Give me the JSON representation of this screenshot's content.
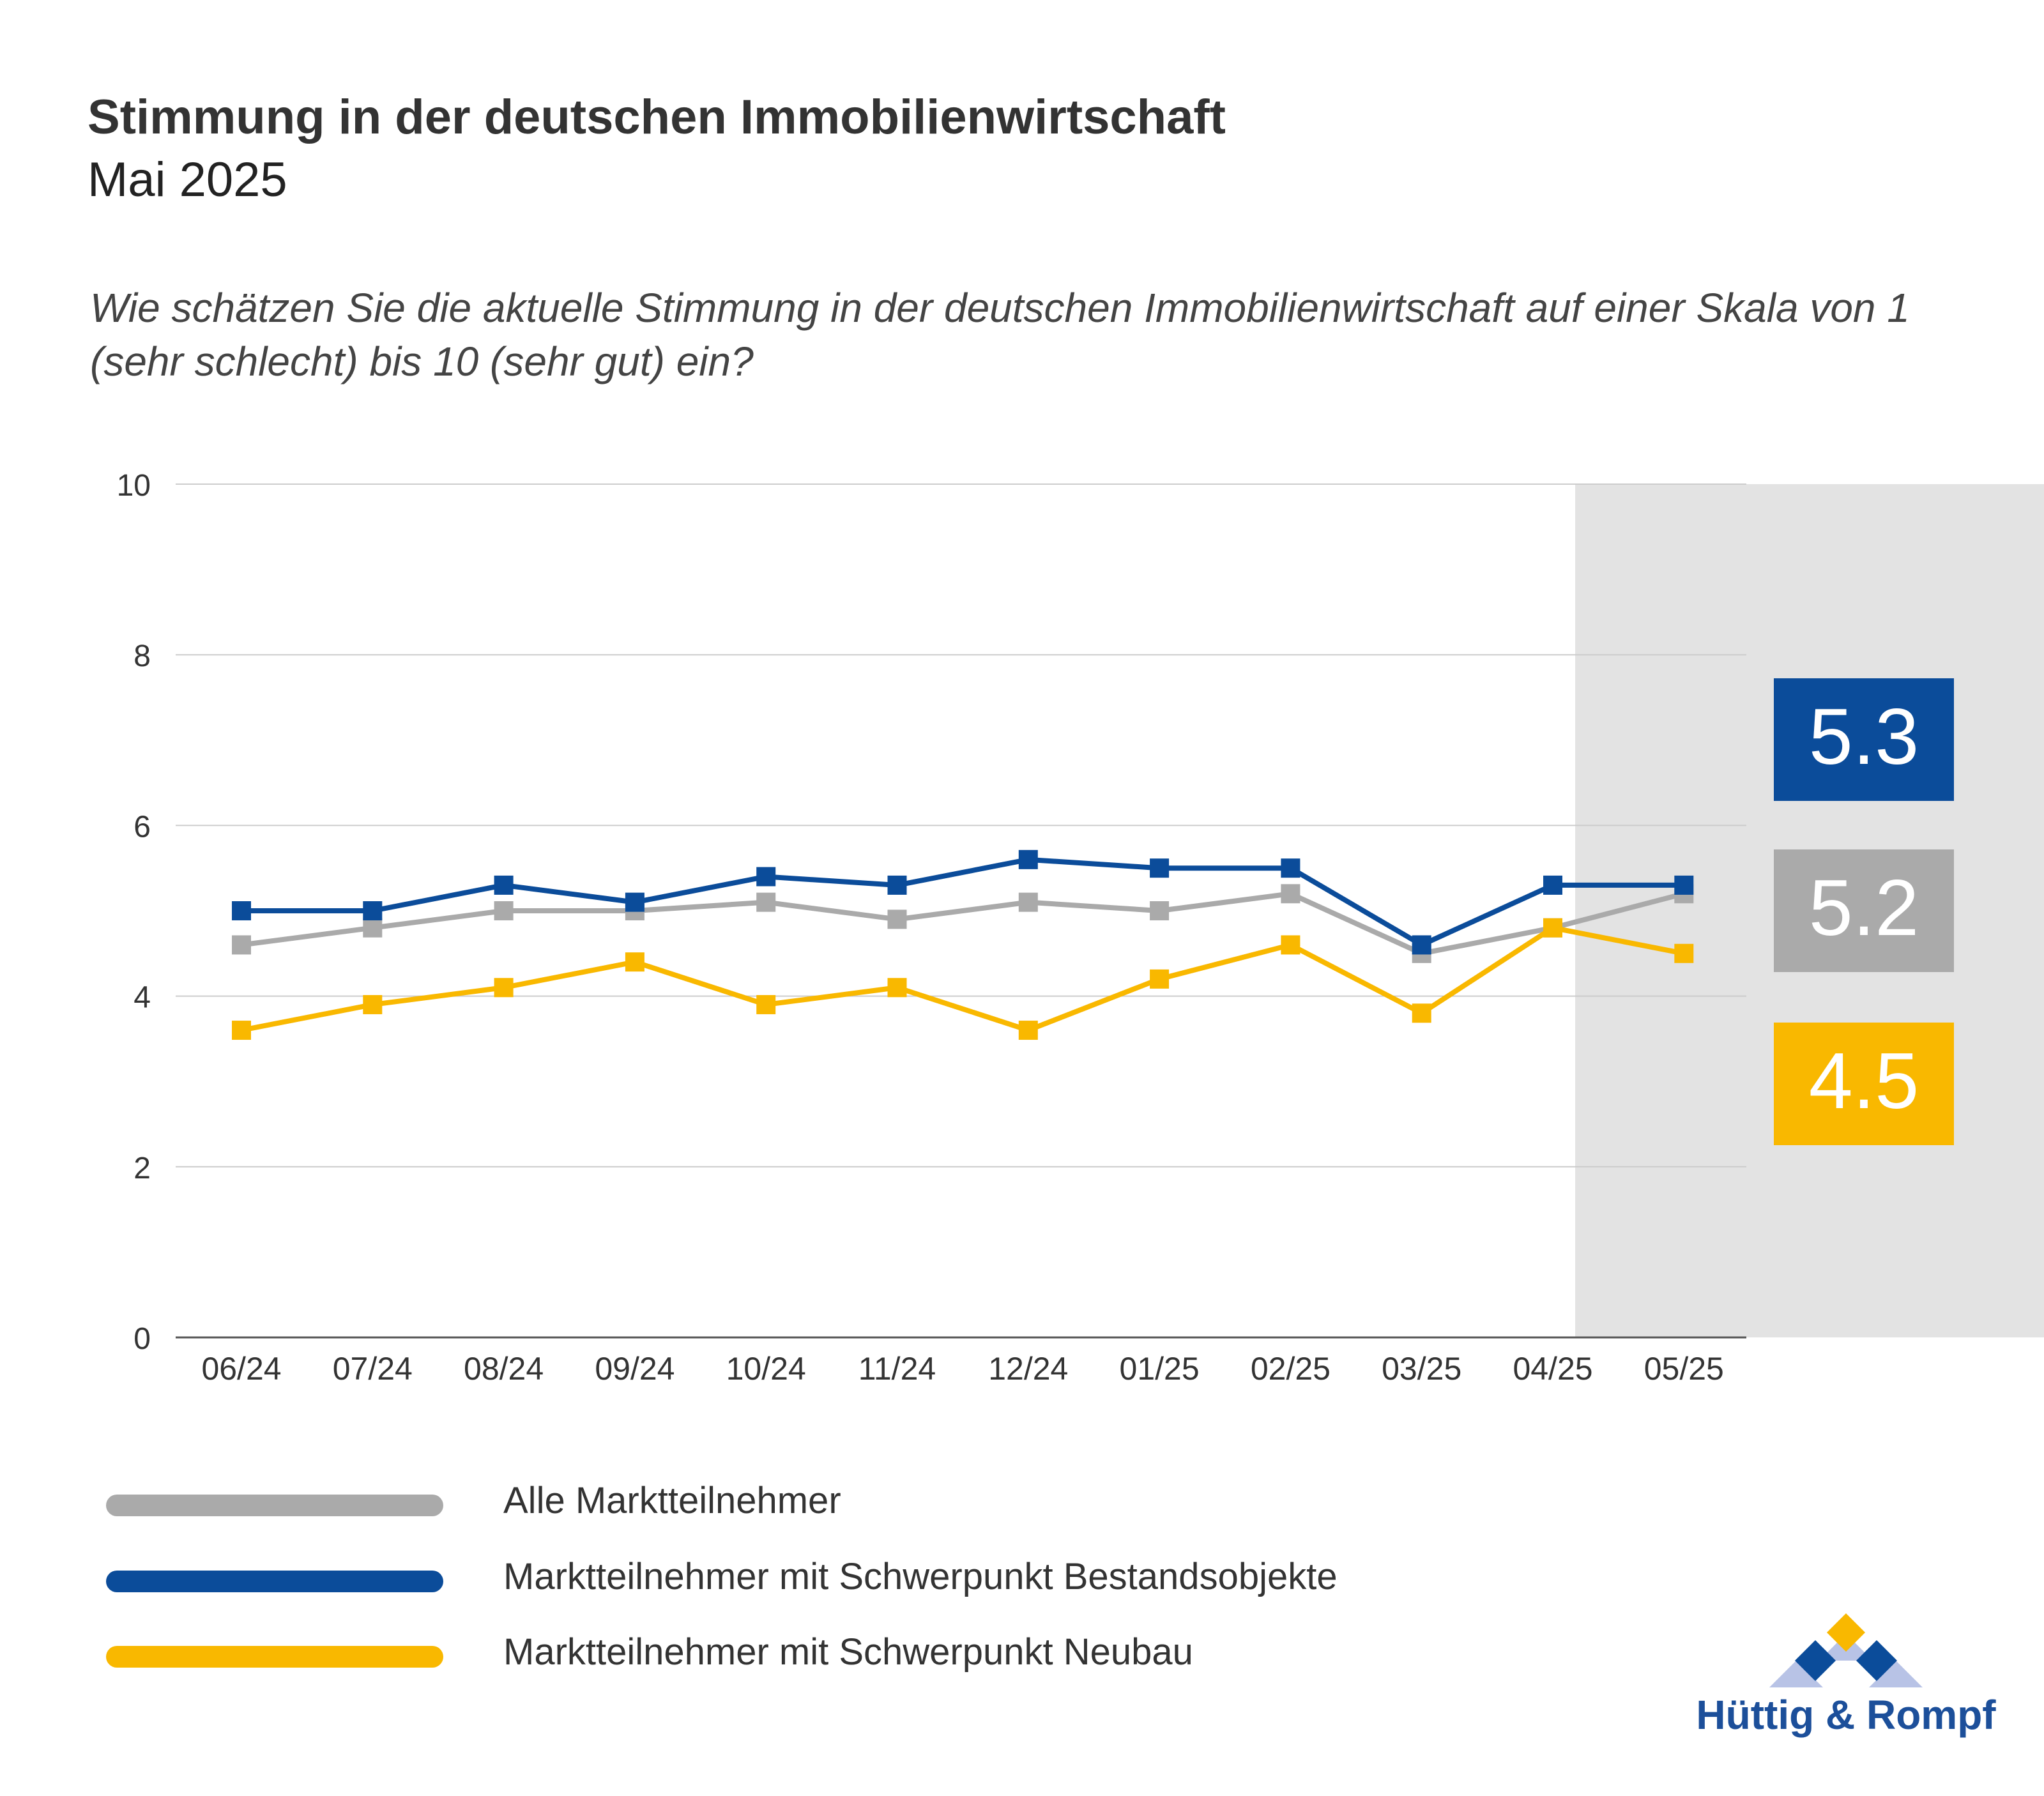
{
  "title": "Stimmung in der deutschen Immobilienwirtschaft",
  "subtitle": "Mai 2025",
  "question": "Wie schätzen Sie die aktuelle Stimmung in der deutschen Immobilienwirtschaft auf einer Skala von 1 (sehr schlecht) bis 10 (sehr gut) ein?",
  "colors": {
    "gray": "#aaaaaa",
    "blue": "#0b4c9a",
    "yellow": "#f9b800",
    "highlight_bg": "#e3e3e3",
    "grid": "#cccccc"
  },
  "chart_data": {
    "type": "line",
    "categories": [
      "06/24",
      "07/24",
      "08/24",
      "09/24",
      "10/24",
      "11/24",
      "12/24",
      "01/25",
      "02/25",
      "03/25",
      "04/25",
      "05/25"
    ],
    "ylim": [
      0,
      10
    ],
    "yticks": [
      0,
      2,
      4,
      6,
      8,
      10
    ],
    "grid": true,
    "highlight_categories": [
      "04/25",
      "05/25"
    ],
    "series": [
      {
        "name": "Alle Marktteilnehmer",
        "color": "#aaaaaa",
        "values": [
          4.6,
          4.8,
          5.0,
          5.0,
          5.1,
          4.9,
          5.1,
          5.0,
          5.2,
          4.5,
          4.8,
          5.2
        ]
      },
      {
        "name": "Marktteilnehmer mit Schwerpunkt Bestandsobjekte",
        "color": "#0b4c9a",
        "values": [
          5.0,
          5.0,
          5.3,
          5.1,
          5.4,
          5.3,
          5.6,
          5.5,
          5.5,
          4.6,
          5.3,
          5.3
        ]
      },
      {
        "name": "Marktteilnehmer mit Schwerpunkt Neubau",
        "color": "#f9b800",
        "values": [
          3.6,
          3.9,
          4.1,
          4.4,
          3.9,
          4.1,
          3.6,
          4.2,
          4.6,
          3.8,
          4.8,
          4.5
        ]
      }
    ],
    "value_boxes": [
      {
        "label": "5.3",
        "color": "#0b4c9a"
      },
      {
        "label": "5.2",
        "color": "#aaaaaa"
      },
      {
        "label": "4.5",
        "color": "#f9b800"
      }
    ]
  },
  "legend": [
    {
      "label": "Alle Marktteilnehmer",
      "color": "#aaaaaa"
    },
    {
      "label": "Marktteilnehmer mit Schwerpunkt Bestandsobjekte",
      "color": "#0b4c9a"
    },
    {
      "label": "Marktteilnehmer mit Schwerpunkt Neubau",
      "color": "#f9b800"
    }
  ],
  "logo": {
    "text": "Hüttig & Rompf"
  }
}
